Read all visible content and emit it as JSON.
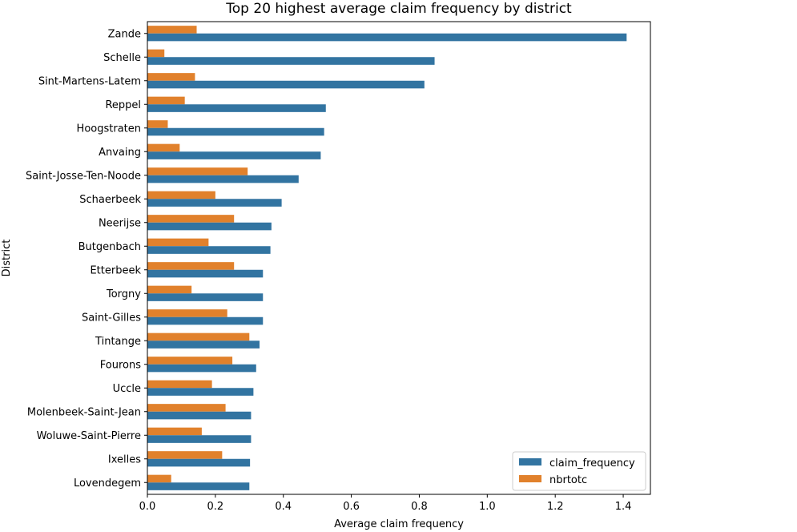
{
  "chart_data": {
    "type": "bar",
    "orientation": "horizontal",
    "title": "Top 20 highest average claim frequency by district",
    "xlabel": "Average claim frequency",
    "ylabel": "District",
    "xlim": [
      0,
      1.48
    ],
    "xticks": [
      0.0,
      0.2,
      0.4,
      0.6,
      0.8,
      1.0,
      1.2,
      1.4
    ],
    "xtick_labels": [
      "0.0",
      "0.2",
      "0.4",
      "0.6",
      "0.8",
      "1.0",
      "1.2",
      "1.4"
    ],
    "grid": false,
    "legend_position": "bottom-right",
    "categories": [
      "Zande",
      "Schelle",
      "Sint-Martens-Latem",
      "Reppel",
      "Hoogstraten",
      "Anvaing",
      "Saint-Josse-Ten-Noode",
      "Schaerbeek",
      "Neerijse",
      "Butgenbach",
      "Etterbeek",
      "Torgny",
      "Saint-Gilles",
      "Tintange",
      "Fourons",
      "Uccle",
      "Molenbeek-Saint-Jean",
      "Woluwe-Saint-Pierre",
      "Ixelles",
      "Lovendegem"
    ],
    "series": [
      {
        "name": "claim_frequency",
        "color": "#3274a1",
        "values": [
          1.41,
          0.845,
          0.815,
          0.525,
          0.52,
          0.51,
          0.445,
          0.395,
          0.365,
          0.362,
          0.34,
          0.34,
          0.34,
          0.33,
          0.32,
          0.312,
          0.305,
          0.305,
          0.302,
          0.3
        ]
      },
      {
        "name": "nbrtotc",
        "color": "#e1812c",
        "values": [
          0.145,
          0.05,
          0.14,
          0.11,
          0.06,
          0.095,
          0.295,
          0.2,
          0.255,
          0.18,
          0.255,
          0.13,
          0.235,
          0.3,
          0.25,
          0.19,
          0.23,
          0.16,
          0.22,
          0.07
        ]
      }
    ]
  }
}
